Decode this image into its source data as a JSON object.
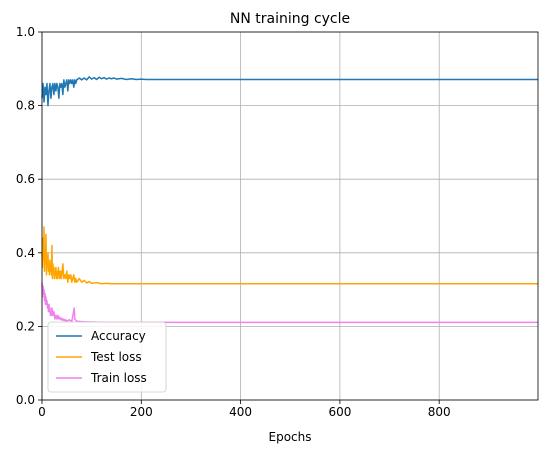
{
  "chart_data": {
    "type": "line",
    "title": "NN training cycle",
    "xlabel": "Epochs",
    "ylabel": "",
    "xlim": [
      0,
      999
    ],
    "ylim": [
      0,
      1.0
    ],
    "x_ticks": [
      0,
      200,
      400,
      600,
      800
    ],
    "x_tick_labels": [
      "0",
      "200",
      "400",
      "600",
      "800"
    ],
    "y_ticks": [
      0.0,
      0.2,
      0.4,
      0.6,
      0.8,
      1.0
    ],
    "y_tick_labels": [
      "0.0",
      "0.2",
      "0.4",
      "0.6",
      "0.8",
      "1.0"
    ],
    "grid": true,
    "legend_position": "lower-left",
    "series": [
      {
        "name": "Accuracy",
        "color": "#1f77b4",
        "points": [
          [
            0,
            0.82
          ],
          [
            2,
            0.86
          ],
          [
            4,
            0.81
          ],
          [
            6,
            0.85
          ],
          [
            8,
            0.83
          ],
          [
            10,
            0.86
          ],
          [
            12,
            0.8
          ],
          [
            14,
            0.84
          ],
          [
            16,
            0.86
          ],
          [
            18,
            0.82
          ],
          [
            20,
            0.85
          ],
          [
            22,
            0.86
          ],
          [
            24,
            0.83
          ],
          [
            26,
            0.86
          ],
          [
            28,
            0.84
          ],
          [
            30,
            0.86
          ],
          [
            32,
            0.85
          ],
          [
            34,
            0.82
          ],
          [
            36,
            0.86
          ],
          [
            38,
            0.85
          ],
          [
            40,
            0.86
          ],
          [
            42,
            0.83
          ],
          [
            44,
            0.87
          ],
          [
            46,
            0.85
          ],
          [
            48,
            0.86
          ],
          [
            50,
            0.87
          ],
          [
            52,
            0.84
          ],
          [
            54,
            0.87
          ],
          [
            56,
            0.86
          ],
          [
            58,
            0.87
          ],
          [
            60,
            0.86
          ],
          [
            62,
            0.87
          ],
          [
            64,
            0.85
          ],
          [
            66,
            0.87
          ],
          [
            68,
            0.86
          ],
          [
            70,
            0.87
          ],
          [
            75,
            0.875
          ],
          [
            80,
            0.87
          ],
          [
            85,
            0.875
          ],
          [
            90,
            0.87
          ],
          [
            95,
            0.878
          ],
          [
            100,
            0.872
          ],
          [
            105,
            0.876
          ],
          [
            110,
            0.871
          ],
          [
            115,
            0.877
          ],
          [
            120,
            0.873
          ],
          [
            125,
            0.876
          ],
          [
            130,
            0.872
          ],
          [
            135,
            0.875
          ],
          [
            140,
            0.873
          ],
          [
            145,
            0.875
          ],
          [
            150,
            0.872
          ],
          [
            160,
            0.874
          ],
          [
            170,
            0.871
          ],
          [
            180,
            0.873
          ],
          [
            190,
            0.871
          ],
          [
            200,
            0.872
          ],
          [
            210,
            0.871
          ],
          [
            220,
            0.871
          ],
          [
            999,
            0.871
          ]
        ]
      },
      {
        "name": "Test loss",
        "color": "#ffa500",
        "points": [
          [
            0,
            0.4
          ],
          [
            1,
            0.36
          ],
          [
            2,
            0.44
          ],
          [
            3,
            0.38
          ],
          [
            4,
            0.47
          ],
          [
            5,
            0.35
          ],
          [
            6,
            0.4
          ],
          [
            7,
            0.37
          ],
          [
            8,
            0.45
          ],
          [
            9,
            0.34
          ],
          [
            10,
            0.39
          ],
          [
            11,
            0.36
          ],
          [
            12,
            0.4
          ],
          [
            13,
            0.35
          ],
          [
            14,
            0.37
          ],
          [
            15,
            0.34
          ],
          [
            16,
            0.38
          ],
          [
            17,
            0.35
          ],
          [
            18,
            0.36
          ],
          [
            19,
            0.34
          ],
          [
            20,
            0.42
          ],
          [
            21,
            0.33
          ],
          [
            22,
            0.37
          ],
          [
            23,
            0.35
          ],
          [
            24,
            0.36
          ],
          [
            25,
            0.33
          ],
          [
            26,
            0.35
          ],
          [
            27,
            0.34
          ],
          [
            28,
            0.36
          ],
          [
            29,
            0.33
          ],
          [
            30,
            0.35
          ],
          [
            31,
            0.34
          ],
          [
            32,
            0.33
          ],
          [
            33,
            0.36
          ],
          [
            34,
            0.34
          ],
          [
            35,
            0.35
          ],
          [
            36,
            0.33
          ],
          [
            37,
            0.34
          ],
          [
            38,
            0.35
          ],
          [
            39,
            0.33
          ],
          [
            40,
            0.34
          ],
          [
            42,
            0.37
          ],
          [
            44,
            0.33
          ],
          [
            46,
            0.34
          ],
          [
            48,
            0.33
          ],
          [
            50,
            0.35
          ],
          [
            52,
            0.32
          ],
          [
            54,
            0.34
          ],
          [
            56,
            0.33
          ],
          [
            58,
            0.34
          ],
          [
            60,
            0.32
          ],
          [
            62,
            0.33
          ],
          [
            64,
            0.34
          ],
          [
            66,
            0.32
          ],
          [
            68,
            0.33
          ],
          [
            70,
            0.32
          ],
          [
            75,
            0.33
          ],
          [
            80,
            0.32
          ],
          [
            85,
            0.325
          ],
          [
            90,
            0.318
          ],
          [
            95,
            0.322
          ],
          [
            100,
            0.317
          ],
          [
            110,
            0.319
          ],
          [
            120,
            0.316
          ],
          [
            130,
            0.317
          ],
          [
            140,
            0.316
          ],
          [
            999,
            0.316
          ]
        ]
      },
      {
        "name": "Train loss",
        "color": "#ee82ee",
        "points": [
          [
            0,
            0.32
          ],
          [
            1,
            0.28
          ],
          [
            2,
            0.31
          ],
          [
            3,
            0.29
          ],
          [
            4,
            0.3
          ],
          [
            5,
            0.27
          ],
          [
            6,
            0.29
          ],
          [
            7,
            0.26
          ],
          [
            8,
            0.28
          ],
          [
            9,
            0.26
          ],
          [
            10,
            0.27
          ],
          [
            11,
            0.25
          ],
          [
            12,
            0.26
          ],
          [
            13,
            0.24
          ],
          [
            14,
            0.26
          ],
          [
            15,
            0.24
          ],
          [
            16,
            0.25
          ],
          [
            17,
            0.23
          ],
          [
            18,
            0.24
          ],
          [
            19,
            0.23
          ],
          [
            20,
            0.25
          ],
          [
            22,
            0.23
          ],
          [
            24,
            0.24
          ],
          [
            26,
            0.22
          ],
          [
            28,
            0.23
          ],
          [
            30,
            0.22
          ],
          [
            32,
            0.23
          ],
          [
            34,
            0.22
          ],
          [
            36,
            0.225
          ],
          [
            38,
            0.218
          ],
          [
            40,
            0.222
          ],
          [
            42,
            0.216
          ],
          [
            44,
            0.22
          ],
          [
            46,
            0.215
          ],
          [
            48,
            0.218
          ],
          [
            50,
            0.214
          ],
          [
            55,
            0.218
          ],
          [
            60,
            0.213
          ],
          [
            65,
            0.25
          ],
          [
            66,
            0.22
          ],
          [
            70,
            0.214
          ],
          [
            80,
            0.213
          ],
          [
            90,
            0.212
          ],
          [
            100,
            0.212
          ],
          [
            120,
            0.211
          ],
          [
            140,
            0.211
          ],
          [
            999,
            0.211
          ]
        ]
      }
    ]
  }
}
